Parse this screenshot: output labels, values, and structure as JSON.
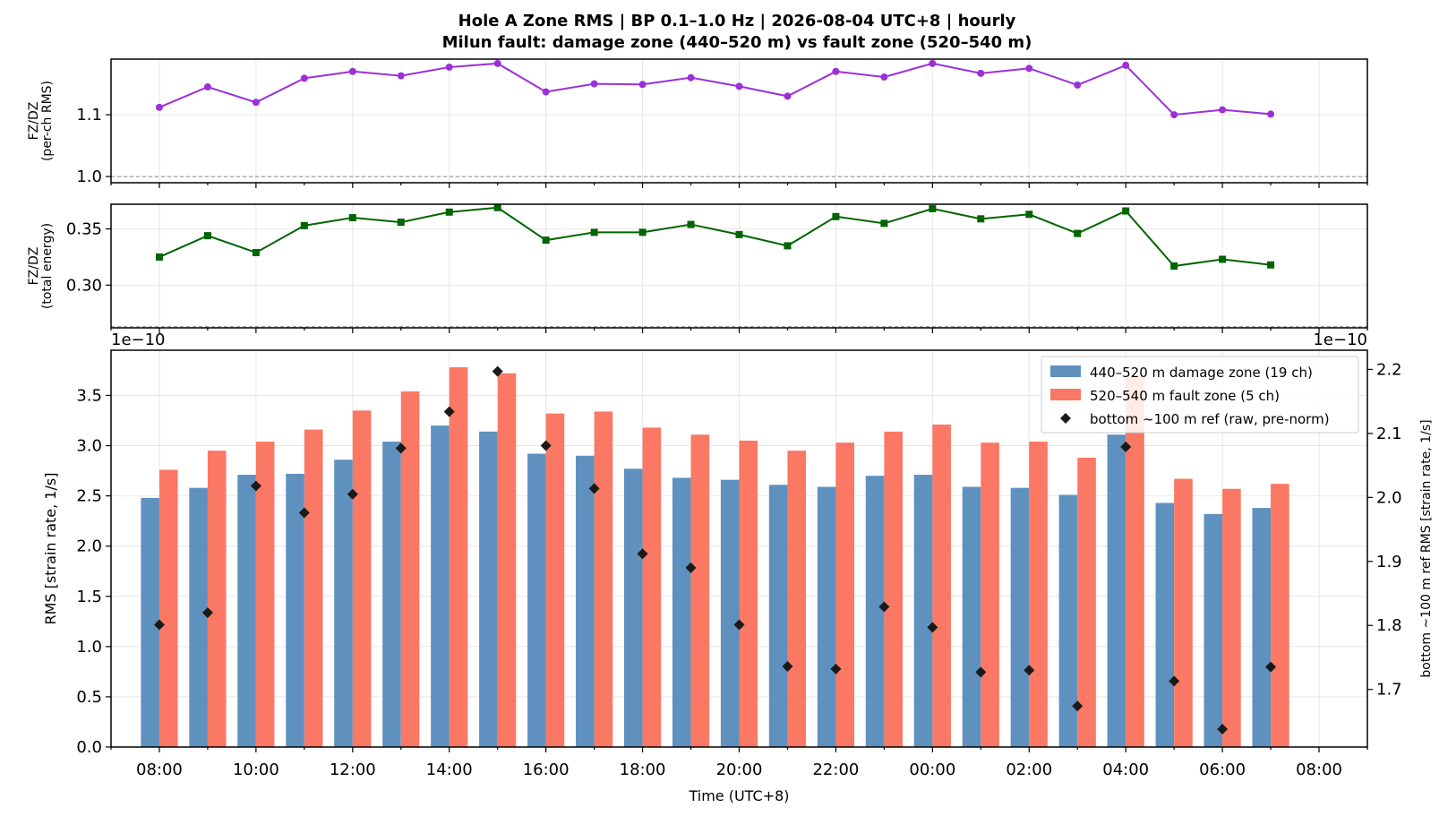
{
  "title_line1": "Hole A Zone RMS  |  BP 0.1–1.0 Hz  |  2026-08-04 UTC+8  |  hourly",
  "title_line2": "Milun fault: damage zone (440–520 m) vs fault zone (520–540 m)",
  "colors": {
    "ratio_rms": "#9b30d9",
    "ratio_energy": "#006400",
    "damage_zone": "#5f91bf",
    "fault_zone": "#fa7864",
    "bottom_ref": "#1a1a1a",
    "grid": "#e6e6e6",
    "ref_line": "#888888"
  },
  "chart_data": [
    {
      "type": "line",
      "ylabel": "FZ/DZ\n(per-ch RMS)",
      "ylim": [
        0.99,
        1.19
      ],
      "yticks": [
        1.0,
        1.1
      ],
      "reference_line": 1.0,
      "grid": true,
      "series": [
        {
          "values": [
            1.112,
            1.145,
            1.12,
            1.159,
            1.17,
            1.163,
            1.177,
            1.183,
            1.137,
            1.15,
            1.149,
            1.16,
            1.146,
            1.13,
            1.17,
            1.161,
            1.183,
            1.167,
            1.175,
            1.148,
            1.18,
            1.1,
            1.108,
            1.101
          ]
        }
      ]
    },
    {
      "type": "line",
      "ylabel": "FZ/DZ\n(total energy)",
      "ylim": [
        0.262,
        0.372
      ],
      "yticks": [
        0.3,
        0.35
      ],
      "reference_line": 0.263,
      "grid": true,
      "series": [
        {
          "values": [
            0.325,
            0.344,
            0.329,
            0.353,
            0.36,
            0.356,
            0.365,
            0.369,
            0.34,
            0.347,
            0.347,
            0.354,
            0.345,
            0.335,
            0.361,
            0.355,
            0.368,
            0.359,
            0.363,
            0.346,
            0.366,
            0.317,
            0.323,
            0.318
          ]
        }
      ]
    },
    {
      "type": "bar",
      "xlabel": "Time (UTC+8)",
      "ylabel": "RMS  [strain rate, 1/s]",
      "ylabel_right": "bottom ~100 m ref RMS  [strain rate, 1/s]",
      "offset_left": "1e−10",
      "offset_right": "1e−10",
      "ylim": [
        0,
        3.95
      ],
      "yticks": [
        0.0,
        0.5,
        1.0,
        1.5,
        2.0,
        2.5,
        3.0,
        3.5
      ],
      "ylim_right": [
        1.61,
        2.23
      ],
      "yticks_right": [
        1.7,
        1.8,
        1.9,
        2.0,
        2.1,
        2.2
      ],
      "xlim_hours": [
        -1.0,
        25.0
      ],
      "xticks": [
        {
          "hour": 0,
          "label": "08:00"
        },
        {
          "hour": 2,
          "label": "10:00"
        },
        {
          "hour": 4,
          "label": "12:00"
        },
        {
          "hour": 6,
          "label": "14:00"
        },
        {
          "hour": 8,
          "label": "16:00"
        },
        {
          "hour": 10,
          "label": "18:00"
        },
        {
          "hour": 12,
          "label": "20:00"
        },
        {
          "hour": 14,
          "label": "22:00"
        },
        {
          "hour": 16,
          "label": "00:00"
        },
        {
          "hour": 18,
          "label": "02:00"
        },
        {
          "hour": 20,
          "label": "04:00"
        },
        {
          "hour": 22,
          "label": "06:00"
        },
        {
          "hour": 24,
          "label": "08:00"
        }
      ],
      "legend_position": "top-right",
      "grid": true,
      "series": [
        {
          "name": "440–520 m  damage zone (19 ch)",
          "values": [
            2.48,
            2.58,
            2.71,
            2.72,
            2.86,
            3.04,
            3.2,
            3.14,
            2.92,
            2.9,
            2.77,
            2.68,
            2.66,
            2.61,
            2.59,
            2.7,
            2.71,
            2.59,
            2.58,
            2.51,
            3.11,
            2.43,
            2.32,
            2.38
          ]
        },
        {
          "name": "520–540 m  fault zone (5 ch)",
          "values": [
            2.76,
            2.95,
            3.04,
            3.16,
            3.35,
            3.54,
            3.78,
            3.72,
            3.32,
            3.34,
            3.18,
            3.11,
            3.05,
            2.95,
            3.03,
            3.14,
            3.21,
            3.03,
            3.04,
            2.88,
            3.69,
            2.67,
            2.57,
            2.62
          ]
        },
        {
          "name": "bottom ~100 m ref (raw, pre-norm)",
          "axis": "right",
          "values": [
            1.801,
            1.82,
            2.018,
            1.976,
            2.005,
            2.077,
            2.134,
            2.197,
            2.081,
            2.014,
            1.912,
            1.89,
            1.801,
            1.736,
            1.732,
            1.829,
            1.797,
            1.727,
            1.73,
            1.674,
            2.079,
            1.713,
            1.638,
            1.735
          ]
        }
      ]
    }
  ]
}
